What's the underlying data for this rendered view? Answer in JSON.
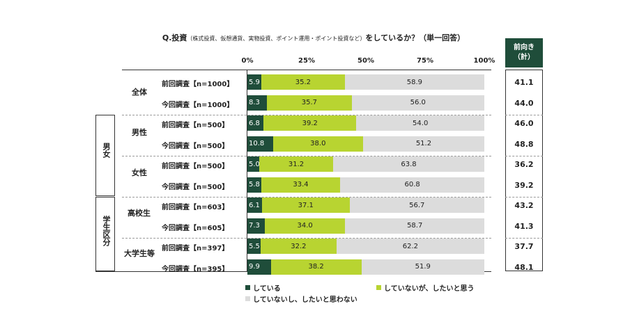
{
  "chart_data": {
    "type": "bar",
    "stacked": true,
    "orientation": "horizontal",
    "title": "Q.投資",
    "title_paren": "（株式投資、仮想通貨、実物投資、ポイント運用・ポイント投資など）",
    "title_suffix": "をしているか？（単一回答）",
    "xlim": [
      0,
      100
    ],
    "ticks": [
      "0%",
      "25%",
      "50%",
      "75%",
      "100%"
    ],
    "tick_values": [
      0,
      25,
      50,
      75,
      100
    ],
    "legend_position": "bottom",
    "colors": [
      "#1f4d3a",
      "#b8d431",
      "#dcdcdc"
    ],
    "series": [
      {
        "name": "している",
        "values": [
          5.9,
          8.3,
          6.8,
          10.8,
          5.0,
          5.8,
          6.1,
          7.3,
          5.5,
          9.9
        ]
      },
      {
        "name": "していないが、したいと思う",
        "values": [
          35.2,
          35.7,
          39.2,
          38.0,
          31.2,
          33.4,
          37.1,
          34.0,
          32.2,
          38.2
        ]
      },
      {
        "name": "していないし、したいと思わない",
        "values": [
          58.9,
          56.0,
          54.0,
          51.2,
          63.8,
          60.8,
          56.7,
          58.7,
          62.2,
          51.9
        ]
      }
    ],
    "categories": [
      "前回調査【n=1000】",
      "今回調査【n=1000】",
      "前回調査【n=500】",
      "今回調査【n=500】",
      "前回調査【n=500】",
      "今回調査【n=500】",
      "前回調査【n=603】",
      "今回調査【n=605】",
      "前回調査【n=397】",
      "今回調査【n=395】"
    ],
    "subgroups": [
      "全体",
      "男性",
      "女性",
      "高校生",
      "大学生等"
    ],
    "groups": [
      "男女",
      "学生区分"
    ],
    "maemuki_header": [
      "前向き",
      "（計）"
    ],
    "maemuki": [
      "41.1",
      "44.0",
      "46.0",
      "48.8",
      "36.2",
      "39.2",
      "43.2",
      "41.3",
      "37.7",
      "48.1"
    ]
  }
}
